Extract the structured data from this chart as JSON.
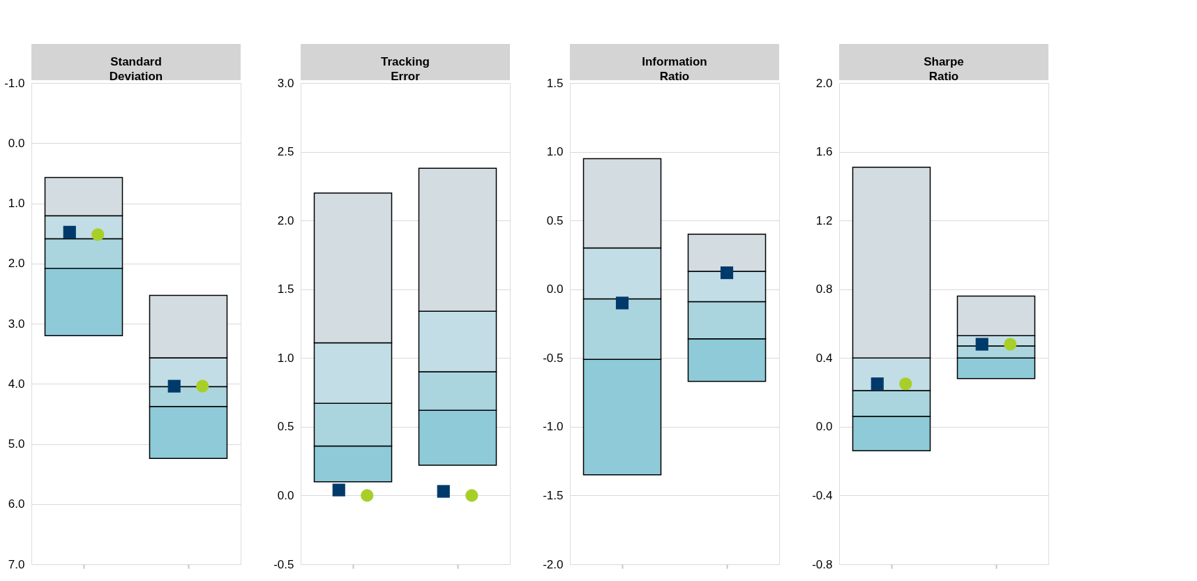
{
  "chart_data": [
    {
      "type": "bar",
      "title": "Standard\nDeviation",
      "categories": [
        null,
        null
      ],
      "ylim": [
        7,
        -1
      ],
      "yticks": [
        {
          "value": -1,
          "label": "-1.0"
        },
        {
          "value": 0,
          "label": "0.0"
        },
        {
          "value": 1,
          "label": "1.0"
        },
        {
          "value": 2,
          "label": "2.0"
        },
        {
          "value": 3,
          "label": "3.0"
        },
        {
          "value": 4,
          "label": "4.0"
        },
        {
          "value": 5,
          "label": "5.0"
        },
        {
          "value": 6,
          "label": "6.0"
        },
        {
          "value": 7,
          "label": "7.0"
        }
      ],
      "series": [
        {
          "color": "#d3dde1",
          "base": [
            0.57,
            2.53
          ],
          "values": [
            0.64,
            1.04
          ]
        },
        {
          "color": "#c2dde5",
          "base": [
            1.21,
            3.57
          ],
          "values": [
            0.38,
            0.48
          ]
        },
        {
          "color": "#aad5df",
          "base": [
            1.59,
            4.05
          ],
          "values": [
            0.49,
            0.33
          ]
        },
        {
          "color": "#8ecad8",
          "base": [
            2.08,
            4.38
          ],
          "values": [
            1.12,
            0.86
          ]
        },
        {
          "type": "scatter",
          "marker": "square",
          "color": "#003a6b",
          "values": [
            1.48,
            4.04
          ]
        },
        {
          "type": "scatter",
          "marker": "circle",
          "color": "#a8cf27",
          "values": [
            1.52,
            4.04
          ]
        }
      ],
      "grid": "y",
      "tick_labels": "y"
    },
    {
      "type": "bar",
      "title": "Tracking\nError",
      "categories": [
        null,
        null
      ],
      "ylim": [
        -0.5,
        3
      ],
      "yticks": [
        {
          "value": -0.5,
          "label": "-0.5"
        },
        {
          "value": 0,
          "label": "0.0"
        },
        {
          "value": 0.5,
          "label": "0.5"
        },
        {
          "value": 1,
          "label": "1.0"
        },
        {
          "value": 1.5,
          "label": "1.5"
        },
        {
          "value": 2,
          "label": "2.0"
        },
        {
          "value": 2.5,
          "label": "2.5"
        },
        {
          "value": 3,
          "label": "3.0"
        }
      ],
      "series": [
        {
          "color": "#8ecad8",
          "base": [
            0.1,
            0.22
          ],
          "values": [
            0.26,
            0.4
          ]
        },
        {
          "color": "#aad5df",
          "base": [
            0.36,
            0.62
          ],
          "values": [
            0.31,
            0.28
          ]
        },
        {
          "color": "#c2dde5",
          "base": [
            0.67,
            0.9
          ],
          "values": [
            0.44,
            0.44
          ]
        },
        {
          "color": "#d3dde1",
          "base": [
            1.11,
            1.34
          ],
          "values": [
            1.09,
            1.04
          ]
        },
        {
          "type": "scatter",
          "marker": "square",
          "color": "#003a6b",
          "values": [
            0.04,
            0.03
          ]
        },
        {
          "type": "scatter",
          "marker": "circle",
          "color": "#a8cf27",
          "values": [
            0.0,
            0.0
          ]
        }
      ],
      "grid": "y",
      "tick_labels": "y"
    },
    {
      "type": "bar",
      "title": "Information\nRatio",
      "categories": [
        null,
        null
      ],
      "ylim": [
        -2,
        1.5
      ],
      "yticks": [
        {
          "value": -2,
          "label": "-2.0"
        },
        {
          "value": -1.5,
          "label": "-1.5"
        },
        {
          "value": -1,
          "label": "-1.0"
        },
        {
          "value": -0.5,
          "label": "-0.5"
        },
        {
          "value": 0,
          "label": "0.0"
        },
        {
          "value": 0.5,
          "label": "0.5"
        },
        {
          "value": 1,
          "label": "1.0"
        },
        {
          "value": 1.5,
          "label": "1.5"
        }
      ],
      "series": [
        {
          "color": "#8ecad8",
          "base": [
            -1.35,
            -0.67
          ],
          "values": [
            0.84,
            0.31
          ]
        },
        {
          "color": "#aad5df",
          "base": [
            -0.51,
            -0.36
          ],
          "values": [
            0.44,
            0.27
          ]
        },
        {
          "color": "#c2dde5",
          "base": [
            -0.07,
            -0.09
          ],
          "values": [
            0.37,
            0.22
          ]
        },
        {
          "color": "#d3dde1",
          "base": [
            0.3,
            0.13
          ],
          "values": [
            0.65,
            0.27
          ]
        },
        {
          "type": "scatter",
          "marker": "square",
          "color": "#003a6b",
          "values": [
            -0.1,
            0.12
          ]
        }
      ],
      "grid": "y",
      "tick_labels": "y"
    },
    {
      "type": "bar",
      "title": "Sharpe\nRatio",
      "categories": [
        null,
        null
      ],
      "ylim": [
        -0.8,
        2
      ],
      "yticks": [
        {
          "value": -0.8,
          "label": "-0.8"
        },
        {
          "value": -0.4,
          "label": "-0.4"
        },
        {
          "value": 0,
          "label": "0.0"
        },
        {
          "value": 0.4,
          "label": "0.4"
        },
        {
          "value": 0.8,
          "label": "0.8"
        },
        {
          "value": 1.2,
          "label": "1.2"
        },
        {
          "value": 1.6,
          "label": "1.6"
        },
        {
          "value": 2,
          "label": "2.0"
        }
      ],
      "series": [
        {
          "color": "#8ecad8",
          "base": [
            -0.14,
            0.28
          ],
          "values": [
            0.2,
            0.12
          ]
        },
        {
          "color": "#aad5df",
          "base": [
            0.06,
            0.4
          ],
          "values": [
            0.15,
            0.07
          ]
        },
        {
          "color": "#c2dde5",
          "base": [
            0.21,
            0.47
          ],
          "values": [
            0.19,
            0.06
          ]
        },
        {
          "color": "#d3dde1",
          "base": [
            0.4,
            0.53
          ],
          "values": [
            1.11,
            0.23
          ]
        },
        {
          "type": "scatter",
          "marker": "square",
          "color": "#003a6b",
          "values": [
            0.25,
            0.48
          ]
        },
        {
          "type": "scatter",
          "marker": "circle",
          "color": "#a8cf27",
          "values": [
            0.25,
            0.48
          ]
        }
      ],
      "grid": "y",
      "tick_labels": "y"
    }
  ]
}
